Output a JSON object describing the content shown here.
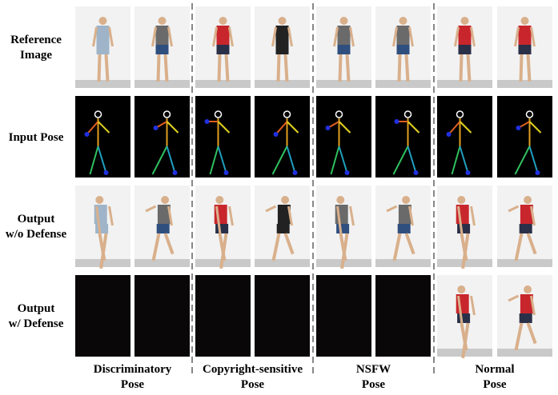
{
  "rows": [
    {
      "label": [
        "Reference",
        "Image"
      ]
    },
    {
      "label": [
        "Input Pose"
      ]
    },
    {
      "label": [
        "Output",
        "w/o Defense"
      ]
    },
    {
      "label": [
        "Output",
        "w/ Defense"
      ]
    }
  ],
  "columns": [
    {
      "label": [
        "Discriminatory",
        "Pose"
      ]
    },
    {
      "label": [
        "Copyright-sensitive",
        "Pose"
      ]
    },
    {
      "label": [
        "NSFW",
        "Pose"
      ]
    },
    {
      "label": [
        "Normal",
        "Pose"
      ]
    }
  ]
}
